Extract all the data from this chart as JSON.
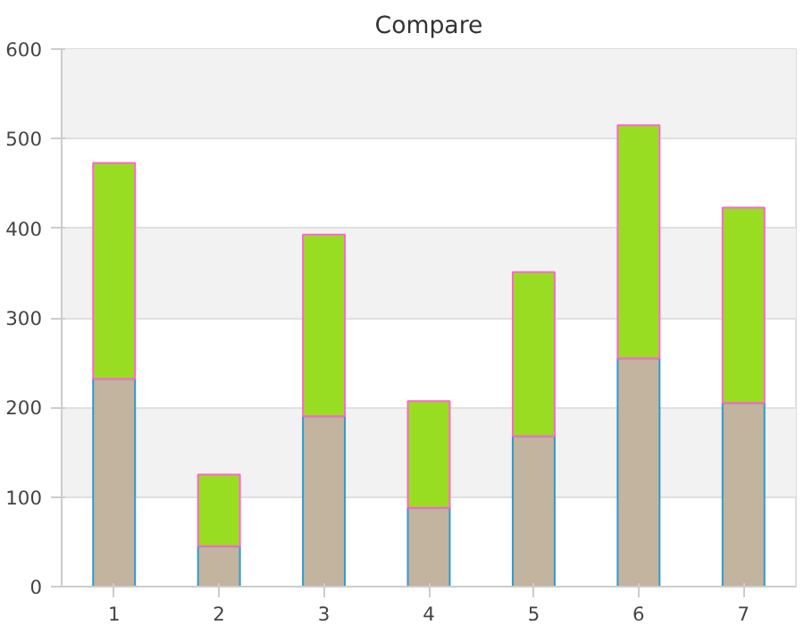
{
  "chart_data": {
    "type": "bar",
    "title": "Compare",
    "stacked": true,
    "categories": [
      "1",
      "2",
      "3",
      "4",
      "5",
      "6",
      "7"
    ],
    "series": [
      {
        "color": "#c2b49e",
        "values": [
          232,
          45,
          190,
          88,
          168,
          255,
          205
        ]
      },
      {
        "color": "#99dd22",
        "values": [
          241,
          80,
          203,
          119,
          183,
          260,
          218
        ]
      }
    ],
    "ylim": [
      0,
      600
    ],
    "yticks": [
      0,
      100,
      200,
      300,
      400,
      500,
      600
    ],
    "grid": "y"
  }
}
